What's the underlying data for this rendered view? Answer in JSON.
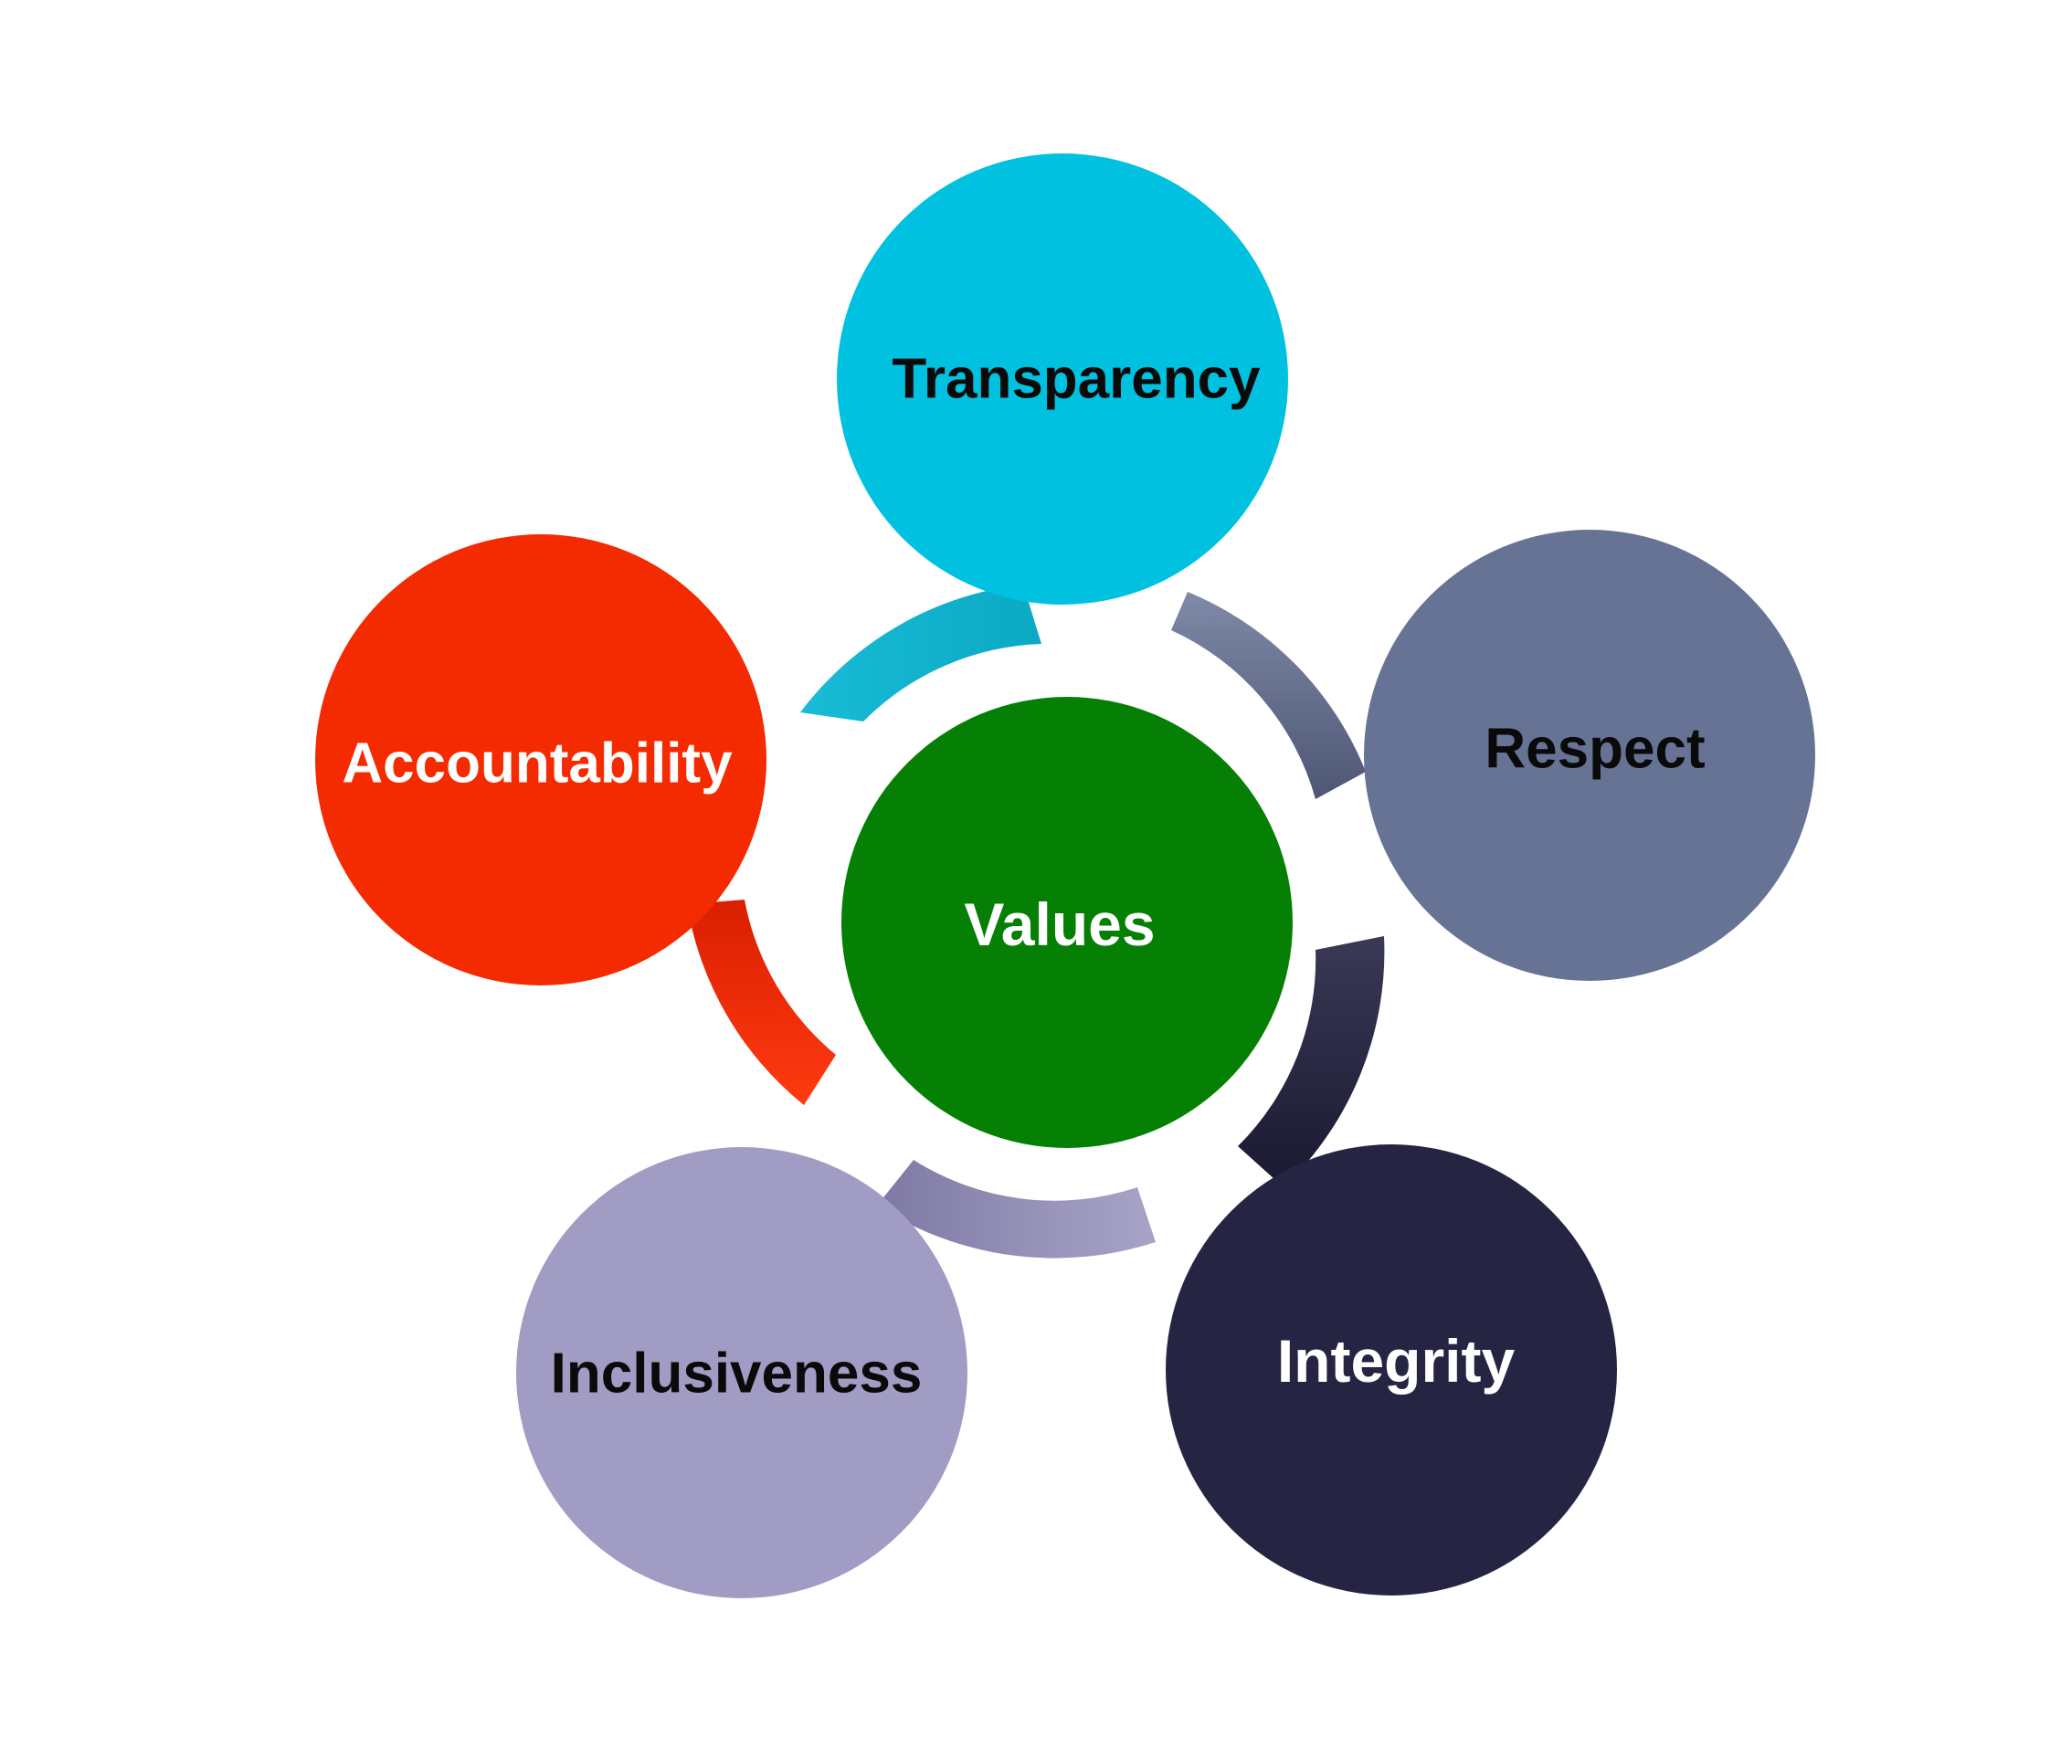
{
  "center": {
    "label": "Values",
    "color": "#058005",
    "text_color": "#ffffff"
  },
  "values": [
    {
      "id": "transparency",
      "label": "Transparency",
      "color": "#00C2E0",
      "text_color": "#0a0a0a"
    },
    {
      "id": "respect",
      "label": "Respect",
      "color": "#667394",
      "text_color": "#0a0a0a"
    },
    {
      "id": "integrity",
      "label": "Integrity",
      "color": "#262443",
      "text_color": "#ffffff"
    },
    {
      "id": "inclusiveness",
      "label": "Inclusiveness",
      "color": "#A19CC3",
      "text_color": "#0a0a0a"
    },
    {
      "id": "accountability",
      "label": "Accountability",
      "color": "#F42B00",
      "text_color": "#ffffff"
    }
  ]
}
